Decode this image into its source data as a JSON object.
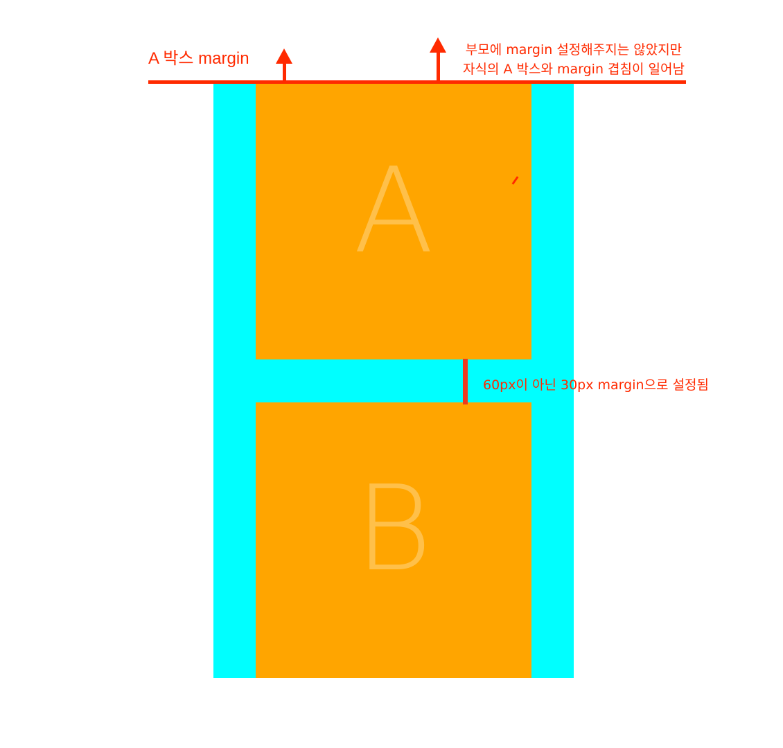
{
  "diagram": {
    "boxes": {
      "a_label": "A",
      "b_label": "B"
    },
    "annotations": {
      "a_margin": "A 박스 margin",
      "parent_note_line1": "부모에 margin 설정해주지는 않았지만",
      "parent_note_line2": "자식의 A 박스와 margin 겹침이 일어남",
      "gap_note": "60px이 아닌 30px margin으로 설정됨"
    },
    "colors": {
      "parent": "#00ffff",
      "child": "#ffa500",
      "annotation": "#ff2a00",
      "letter": "#ffc04a"
    }
  }
}
